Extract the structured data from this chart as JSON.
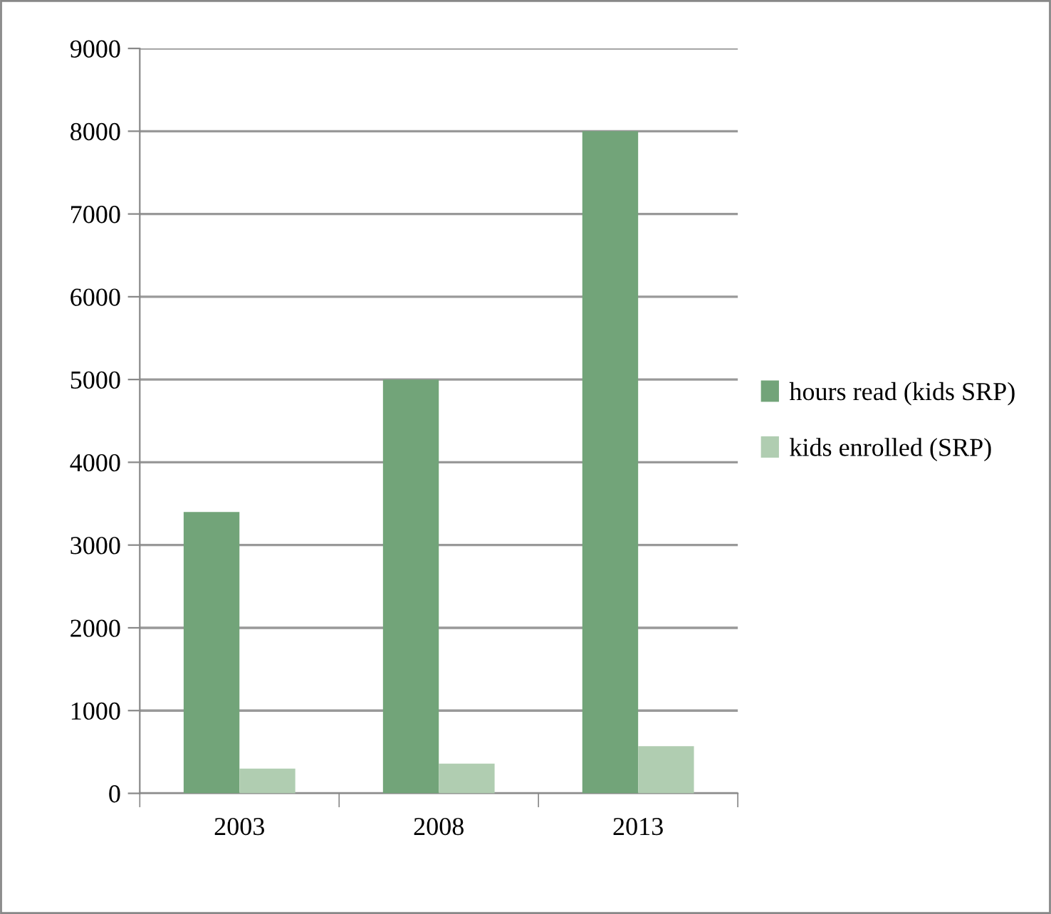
{
  "chart_data": {
    "type": "bar",
    "categories": [
      "2003",
      "2008",
      "2013"
    ],
    "series": [
      {
        "name": "hours read (kids SRP)",
        "color": "#72a479",
        "values": [
          3400,
          5000,
          8000
        ]
      },
      {
        "name": "kids enrolled (SRP)",
        "color": "#b0cdb1",
        "values": [
          300,
          360,
          570
        ]
      }
    ],
    "ylim": [
      0,
      9000
    ],
    "yticks": [
      0,
      1000,
      2000,
      3000,
      4000,
      5000,
      6000,
      7000,
      8000,
      9000
    ],
    "grid": "y",
    "legend": "right"
  }
}
